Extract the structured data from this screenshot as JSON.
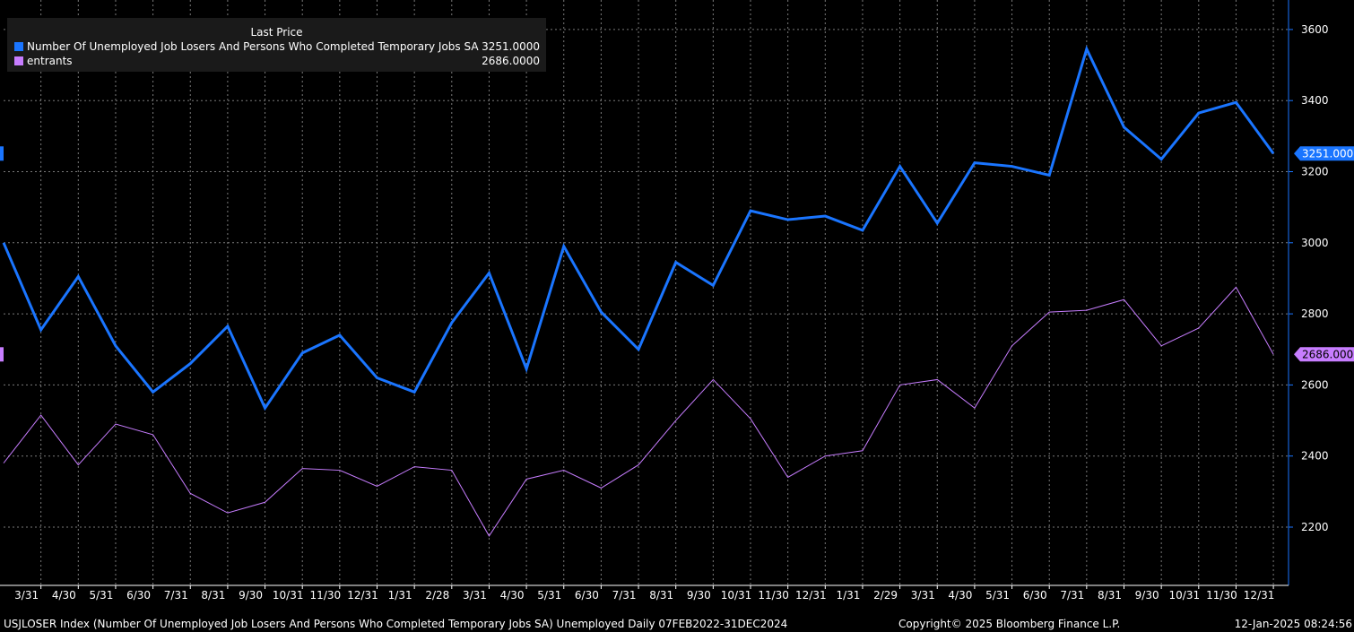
{
  "legend": {
    "title": "Last Price",
    "series": [
      {
        "label": "Number Of Unemployed Job Losers And Persons Who Completed Temporary Jobs SA",
        "value": "3251.0000",
        "color": "#1a75ff"
      },
      {
        "label": "entrants",
        "value": "2686.0000",
        "color": "#c77dff"
      }
    ]
  },
  "footer": {
    "left": "USJLOSER Index (Number Of Unemployed Job Losers And Persons Who Completed Temporary Jobs SA) Unemployed  Daily 07FEB2022-31DEC2024",
    "center": "Copyright© 2025 Bloomberg Finance L.P.",
    "right": "12-Jan-2025 08:24:56"
  },
  "chart_data": {
    "type": "line",
    "x": [
      "2/28",
      "3/31",
      "4/30",
      "5/31",
      "6/30",
      "7/31",
      "8/31",
      "9/30",
      "10/31",
      "11/30",
      "12/31",
      "1/31",
      "2/28",
      "3/31",
      "4/30",
      "5/31",
      "6/30",
      "7/31",
      "8/31",
      "9/30",
      "10/31",
      "11/30",
      "12/31",
      "1/31",
      "2/29",
      "3/31",
      "4/30",
      "5/31",
      "6/30",
      "7/31",
      "8/31",
      "9/30",
      "10/31",
      "11/30",
      "12/31"
    ],
    "tick_labels": [
      "3/31",
      "4/30",
      "5/31",
      "6/30",
      "7/31",
      "8/31",
      "9/30",
      "10/31",
      "11/30",
      "12/31",
      "1/31",
      "2/28",
      "3/31",
      "4/30",
      "5/31",
      "6/30",
      "7/31",
      "8/31",
      "9/30",
      "10/31",
      "11/30",
      "12/31",
      "1/31",
      "2/29",
      "3/31",
      "4/30",
      "5/31",
      "6/30",
      "7/31",
      "8/31",
      "9/30",
      "10/31",
      "11/30",
      "12/31"
    ],
    "series": [
      {
        "name": "Number Of Unemployed Job Losers And Persons Who Completed Temporary Jobs SA",
        "color": "#1a75ff",
        "values": [
          3000,
          2755,
          2905,
          2710,
          2580,
          2660,
          2765,
          2535,
          2690,
          2740,
          2620,
          2580,
          2775,
          2915,
          2645,
          2990,
          2805,
          2700,
          2945,
          2880,
          3090,
          3065,
          3075,
          3035,
          3215,
          3055,
          3225,
          3215,
          3190,
          3545,
          3325,
          3235,
          3365,
          3395,
          3251
        ]
      },
      {
        "name": "entrants",
        "color": "#c77dff",
        "values": [
          2380,
          2515,
          2375,
          2490,
          2460,
          2295,
          2240,
          2270,
          2365,
          2360,
          2315,
          2370,
          2360,
          2175,
          2335,
          2360,
          2310,
          2375,
          2500,
          2615,
          2505,
          2340,
          2400,
          2415,
          2600,
          2615,
          2535,
          2710,
          2805,
          2810,
          2840,
          2710,
          2760,
          2875,
          2686
        ]
      }
    ],
    "y_ticks": [
      "2200",
      "2400",
      "2600",
      "2800",
      "3000",
      "3200",
      "3400",
      "3600"
    ],
    "ylim": [
      2090,
      3665
    ],
    "last_labels": [
      "3251.0000",
      "2686.0000"
    ],
    "grid": true,
    "legend_position": "top-left"
  }
}
